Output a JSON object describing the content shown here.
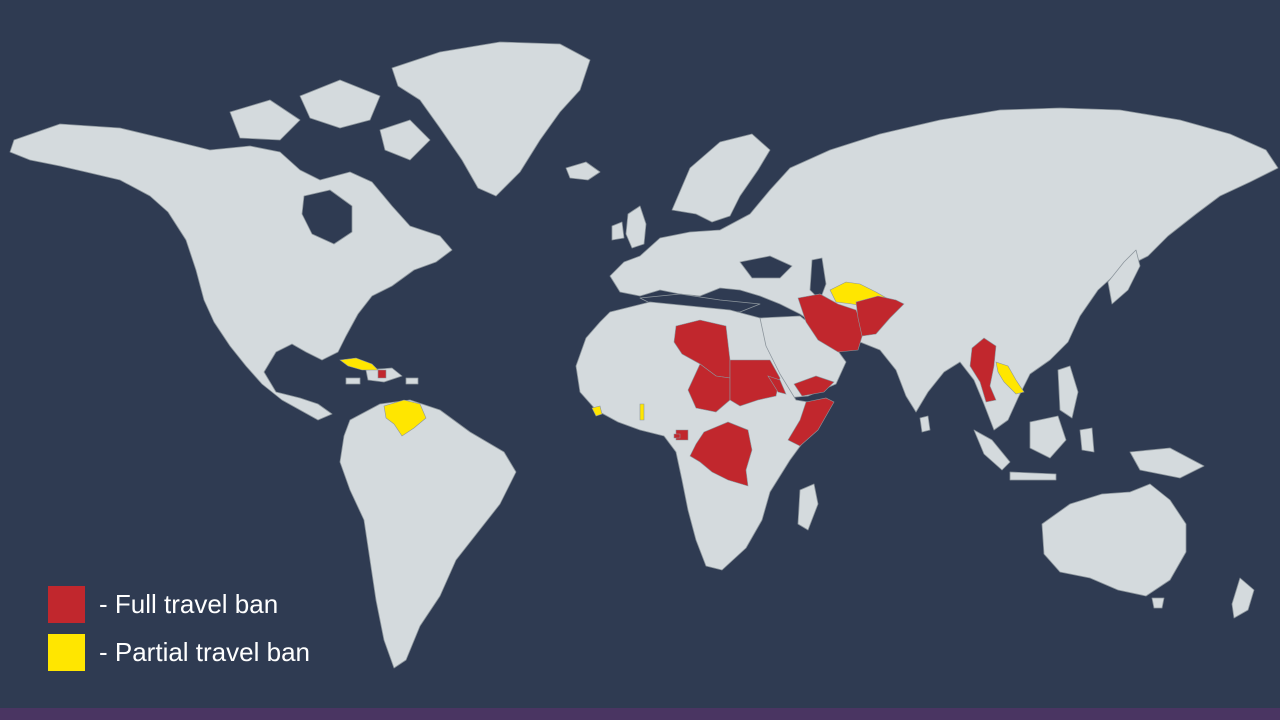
{
  "colors": {
    "ocean": "#2f3b52",
    "land": "#d4dadd",
    "border": "#8d969d",
    "full_ban": "#c1272d",
    "partial_ban": "#ffe600",
    "bottom_bar": "#4a3562",
    "text": "#ffffff"
  },
  "legend": {
    "items": [
      {
        "label": "- Full travel ban",
        "color": "#c1272d"
      },
      {
        "label": "- Partial travel ban",
        "color": "#ffe600"
      }
    ]
  }
}
